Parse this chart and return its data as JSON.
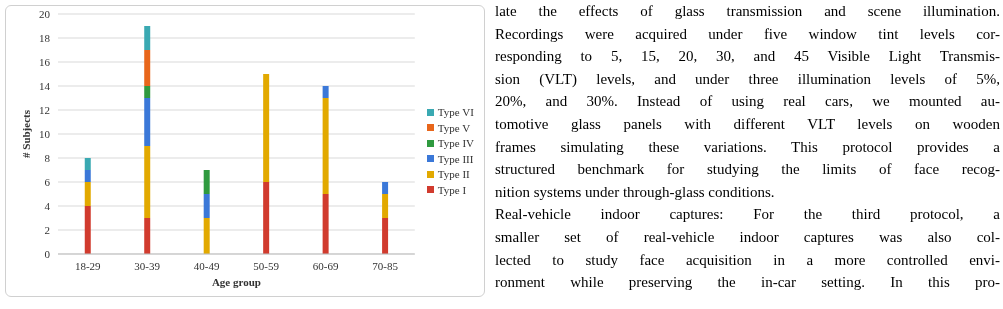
{
  "chart_data": {
    "type": "bar",
    "stacked": true,
    "xlabel": "Age group",
    "ylabel": "# Subjects",
    "categories": [
      "18-29",
      "30-39",
      "40-49",
      "50-59",
      "60-69",
      "70-85"
    ],
    "series": [
      {
        "name": "Type I",
        "color": "#d13b2e",
        "values": [
          4,
          3,
          0,
          6,
          5,
          3
        ]
      },
      {
        "name": "Type II",
        "color": "#e2a900",
        "values": [
          2,
          6,
          3,
          9,
          8,
          2
        ]
      },
      {
        "name": "Type III",
        "color": "#3b78d8",
        "values": [
          1,
          4,
          2,
          0,
          1,
          1
        ]
      },
      {
        "name": "Type IV",
        "color": "#2f9a3f",
        "values": [
          0,
          1,
          2,
          0,
          0,
          0
        ]
      },
      {
        "name": "Type V",
        "color": "#e8661b",
        "values": [
          0,
          3,
          0,
          0,
          0,
          0
        ]
      },
      {
        "name": "Type VI",
        "color": "#3aa9b2",
        "values": [
          1,
          2,
          0,
          0,
          0,
          0
        ]
      }
    ],
    "ylim": [
      0,
      20
    ],
    "yticks": [
      0,
      2,
      4,
      6,
      8,
      10,
      12,
      14,
      16,
      18,
      20
    ],
    "grid": "y",
    "legend": "right",
    "annotations": [
      "late the effects of glass transmission and scene illumination.",
      "Recordings were acquired under five window tint levels cor-",
      "responding to 5, 15, 20, 30, and 45 Visible Light Transmis-",
      "sion (VLT) levels, and under three illumination levels of 5%,",
      "20%, and 30%. Instead of using real cars, we mounted au-",
      "tomotive glass panels with different VLT levels on wooden",
      "frames simulating these variations. This protocol provides a",
      "structured benchmark for studying the limits of face recog-",
      "nition systems under through-glass conditions.",
      "Real-vehicle indoor captures: For the third protocol, a",
      "smaller set of real-vehicle indoor captures was also col-",
      "lected to study face acquisition in a more controlled envi-",
      "ronment while preserving the in-car setting. In this pro-"
    ]
  }
}
